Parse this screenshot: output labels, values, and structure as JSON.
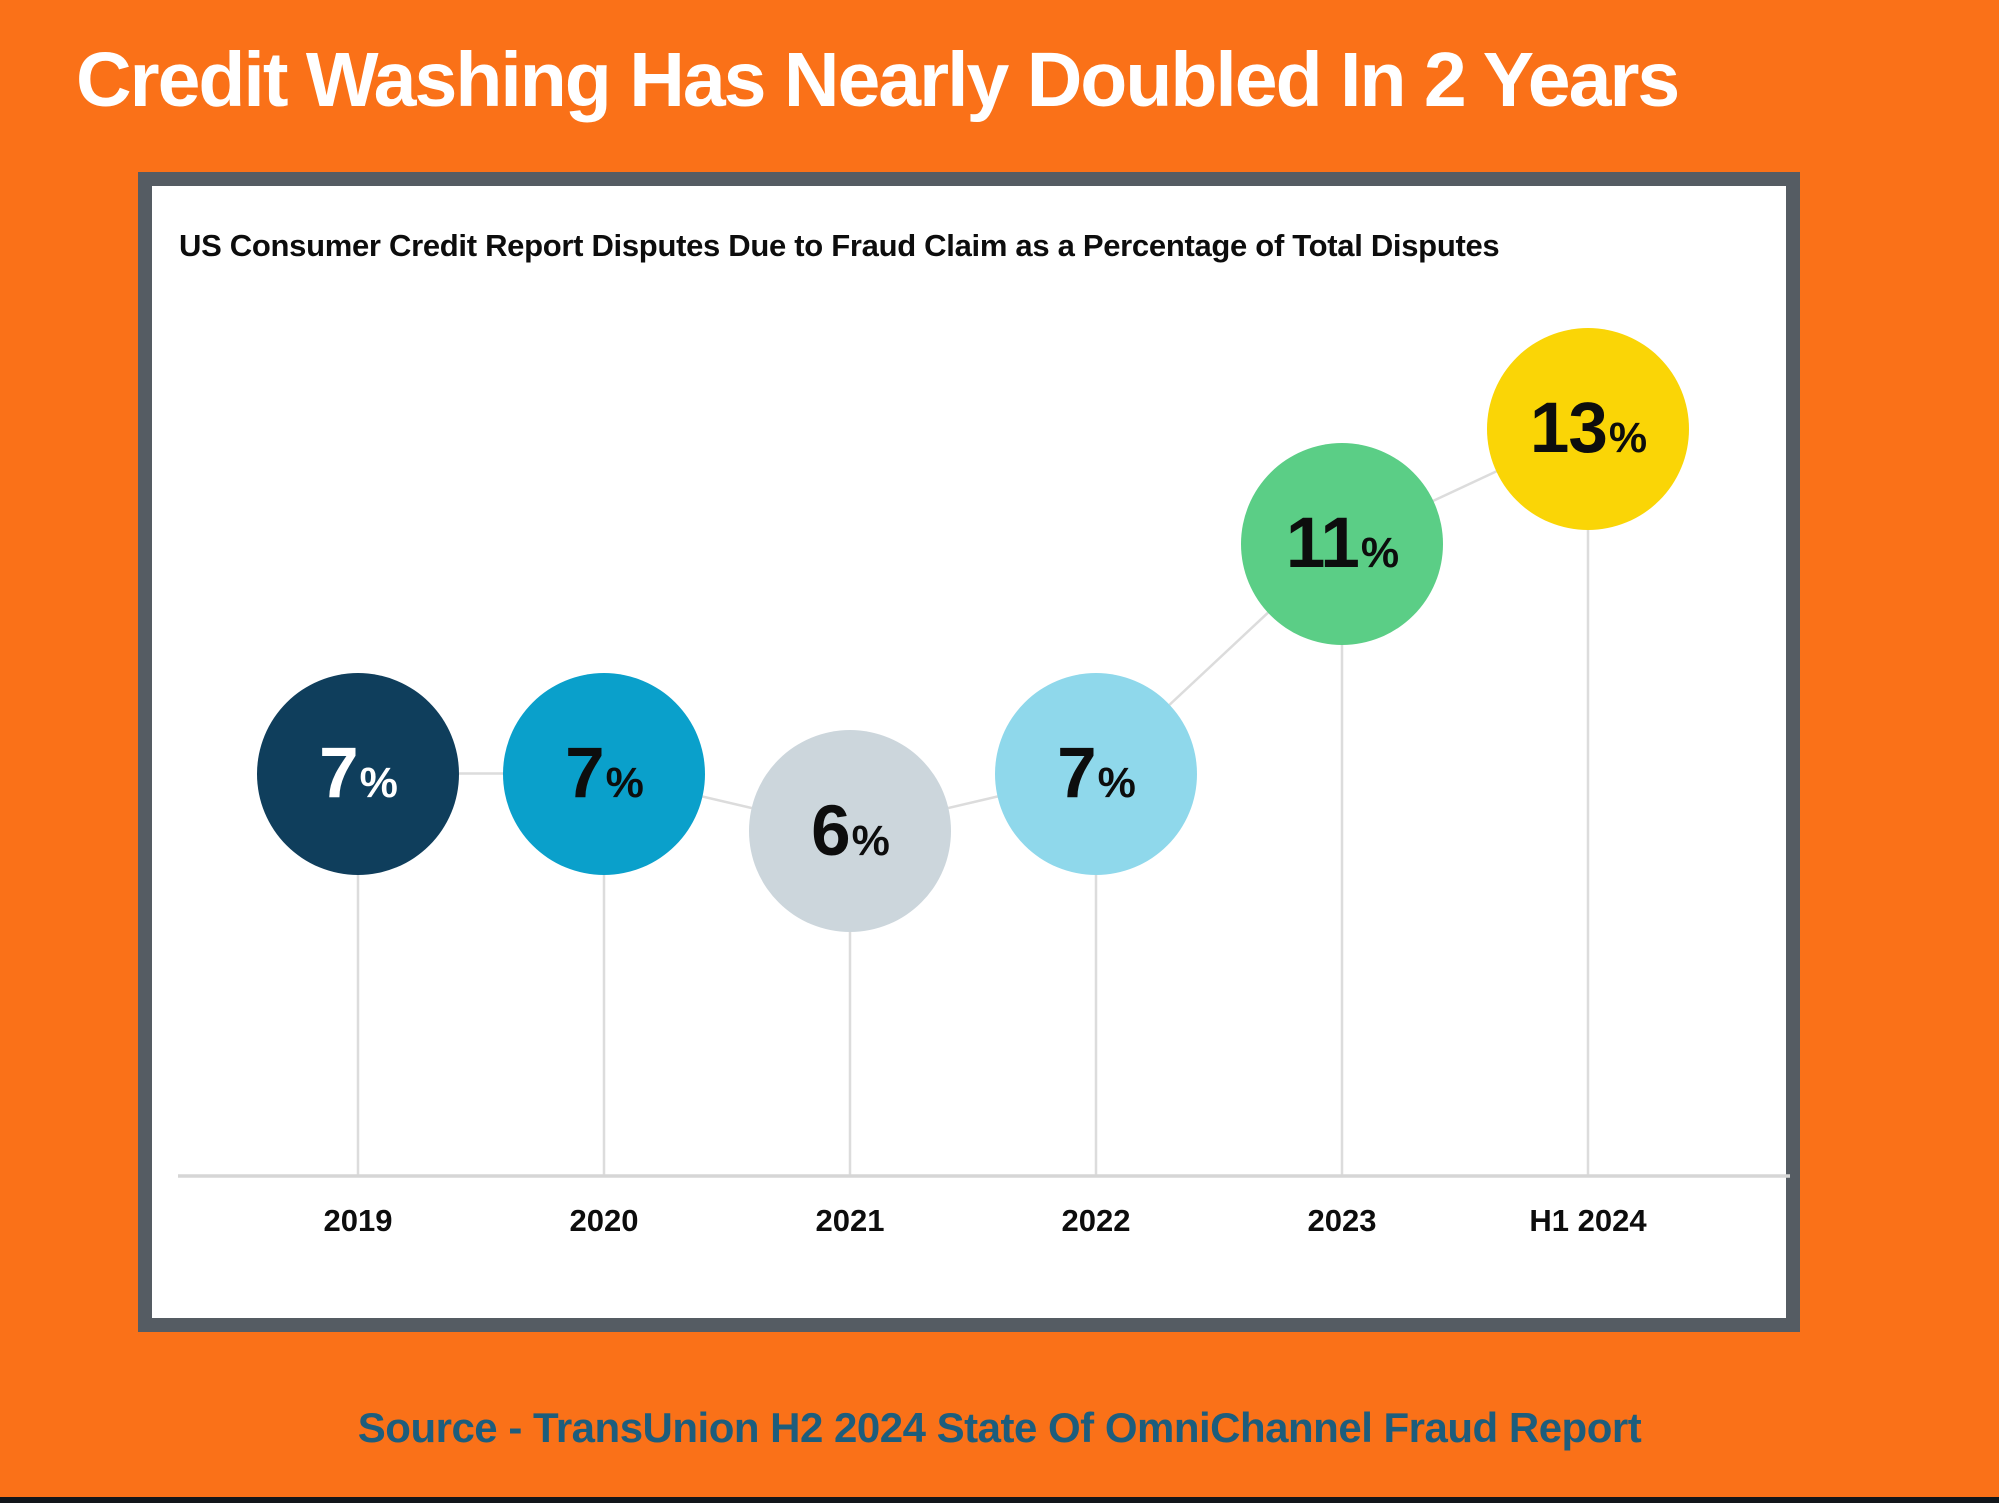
{
  "page": {
    "title": "Credit Washing Has Nearly Doubled In 2 Years",
    "source": "Source - TransUnion H2 2024 State Of OmniChannel Fraud Report"
  },
  "colors": {
    "background": "#fa7118",
    "card_background": "#ffffff",
    "card_border": "#555c63",
    "title_text": "#ffffff",
    "chart_title_text": "#0d0d0d",
    "tick_text": "#0d0d0d",
    "source_text": "#1d5d7c",
    "bottom_bar": "#12161a"
  },
  "chart_data": {
    "type": "line",
    "subtype": "lollipop-bubbles",
    "title": "US Consumer Credit Report Disputes Due to Fraud Claim as a Percentage of Total Disputes",
    "categories": [
      "2019",
      "2020",
      "2021",
      "2022",
      "2023",
      "H1 2024"
    ],
    "values": [
      7,
      7,
      6,
      7,
      11,
      13
    ],
    "point_labels": [
      "7%",
      "7%",
      "6%",
      "7%",
      "11%",
      "13%"
    ],
    "unit": "%",
    "ylim": [
      0,
      17.5
    ],
    "grid": false,
    "legend": false,
    "xlabel": "",
    "ylabel": "",
    "point_colors": [
      "#0f3e5c",
      "#0aa0cb",
      "#ccd6dc",
      "#8fd8eb",
      "#5bce86",
      "#fad506"
    ],
    "point_label_colors": [
      "#ffffff",
      "#0d0d0d",
      "#0d0d0d",
      "#0d0d0d",
      "#0d0d0d",
      "#0d0d0d"
    ],
    "connector_color": "#dcdcdc",
    "axis_color": "#d6d6d6"
  }
}
